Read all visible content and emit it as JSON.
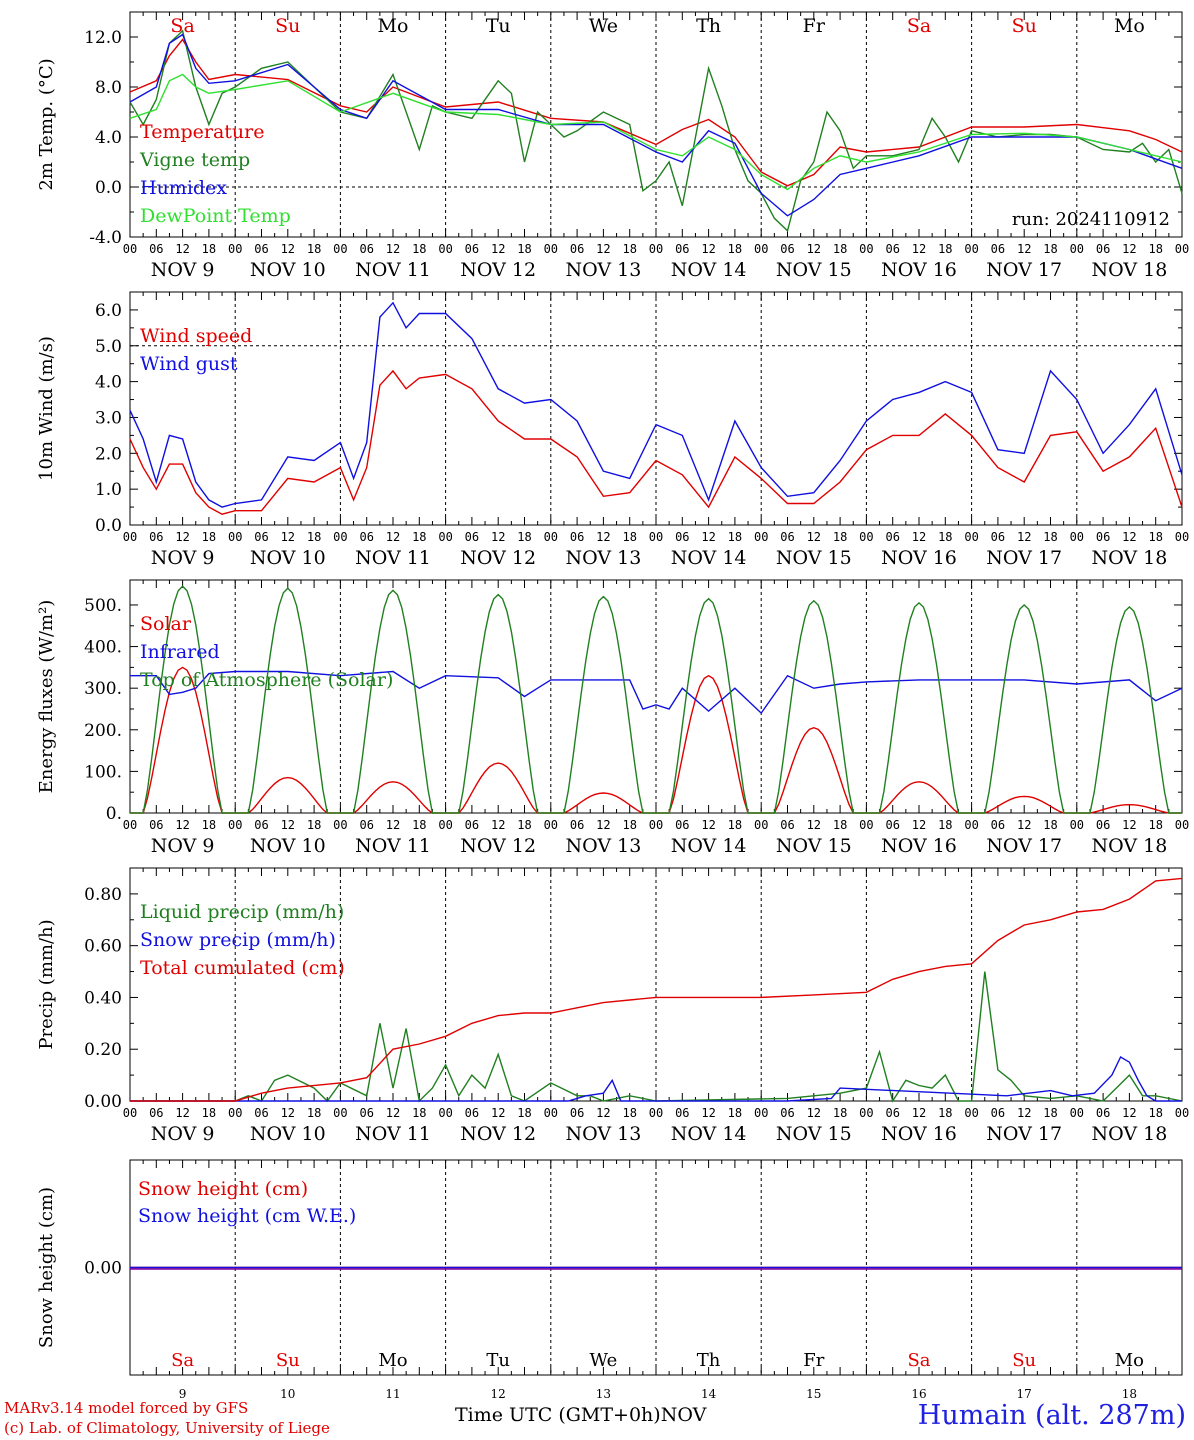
{
  "meta": {
    "run_label": "run: 2024110912",
    "station": "Humain (alt. 287m)",
    "credit_line1": "MARv3.14 model forced by GFS",
    "credit_line2": "(c) Lab. of Climatology, University of Liege",
    "x_title": "Time UTC (GMT+0h)",
    "x_month": "NOV"
  },
  "days": {
    "abbr": [
      "Sa",
      "Su",
      "Mo",
      "Tu",
      "We",
      "Th",
      "Fr",
      "Sa",
      "Su",
      "Mo"
    ],
    "weekend": [
      true,
      true,
      false,
      false,
      false,
      false,
      false,
      true,
      true,
      false
    ],
    "dates": [
      "NOV  9",
      "NOV 10",
      "NOV 11",
      "NOV 12",
      "NOV 13",
      "NOV 14",
      "NOV 15",
      "NOV 16",
      "NOV 17",
      "NOV 18"
    ],
    "nums": [
      "9",
      "10",
      "11",
      "12",
      "13",
      "14",
      "15",
      "16",
      "17",
      "18"
    ],
    "hour_labels": [
      "00",
      "06",
      "12",
      "18"
    ],
    "last_label": "00"
  },
  "colors": {
    "red": "#e00000",
    "green": "#208020",
    "blue": "#1010e0",
    "lightgreen": "#30e030",
    "purple": "#8000a0",
    "weekend": "#e00000",
    "text": "#000000"
  },
  "chart_data": [
    {
      "type": "line",
      "ylabel": "2m Temp. (°C)",
      "ylim": [
        -4,
        14
      ],
      "ticks": [
        "-4.0",
        "0.0",
        "4.0",
        "8.0",
        "12.0"
      ],
      "tick_values": [
        -4,
        0,
        4,
        8,
        12
      ],
      "dashed_y": [
        0
      ],
      "x_unit": "hours since NOV 9 00 UTC",
      "series": [
        {
          "name": "Temperature",
          "color": "red",
          "x": [
            0,
            6,
            9,
            12,
            15,
            18,
            24,
            36,
            48,
            54,
            60,
            72,
            84,
            96,
            108,
            120,
            126,
            132,
            138,
            144,
            150,
            156,
            162,
            168,
            180,
            192,
            204,
            216,
            228,
            240,
            234
          ],
          "y": [
            7.6,
            8.5,
            10.5,
            11.8,
            10.0,
            8.6,
            9.0,
            8.6,
            6.5,
            6.0,
            8.0,
            6.4,
            6.8,
            5.5,
            5.2,
            3.4,
            4.6,
            5.4,
            4.0,
            1.2,
            0.1,
            1.0,
            3.2,
            2.8,
            3.2,
            4.8,
            4.8,
            5.0,
            4.5,
            2.8,
            3.8
          ]
        },
        {
          "name": "Vigne temp",
          "color": "green",
          "x": [
            0,
            3,
            6,
            9,
            12,
            15,
            18,
            21,
            24,
            30,
            36,
            42,
            48,
            54,
            60,
            66,
            69,
            72,
            78,
            84,
            87,
            90,
            93,
            96,
            99,
            102,
            108,
            114,
            117,
            120,
            123,
            126,
            129,
            132,
            135,
            138,
            141,
            144,
            147,
            150,
            153,
            156,
            159,
            162,
            165,
            168,
            174,
            180,
            183,
            186,
            189,
            192,
            198,
            204,
            210,
            216,
            222,
            228,
            231,
            234,
            237,
            240
          ],
          "y": [
            6.8,
            5.0,
            7.0,
            11.5,
            12.5,
            8.0,
            5.0,
            7.5,
            8.0,
            9.5,
            10.0,
            8.0,
            6.0,
            5.5,
            9.0,
            3.0,
            6.5,
            6.0,
            5.5,
            8.5,
            7.5,
            2.0,
            6.0,
            5.0,
            4.0,
            4.5,
            6.0,
            5.0,
            -0.3,
            0.5,
            2.0,
            -1.5,
            4.0,
            9.5,
            6.5,
            3.0,
            0.5,
            -0.5,
            -2.5,
            -3.5,
            0.5,
            2.0,
            6.0,
            4.5,
            1.5,
            2.5,
            2.5,
            3.0,
            5.5,
            4.0,
            2.0,
            4.5,
            4.0,
            4.2,
            4.2,
            4.0,
            3.0,
            2.8,
            3.5,
            2.0,
            3.0,
            -0.5
          ]
        },
        {
          "name": "Humidex",
          "color": "blue",
          "x": [
            0,
            6,
            9,
            12,
            15,
            18,
            24,
            36,
            42,
            48,
            54,
            60,
            72,
            84,
            96,
            108,
            120,
            126,
            132,
            138,
            144,
            150,
            156,
            162,
            168,
            180,
            192,
            204,
            216,
            228,
            240
          ],
          "y": [
            6.8,
            8.0,
            11.5,
            12.2,
            9.5,
            8.3,
            8.5,
            9.8,
            8.0,
            6.2,
            5.5,
            8.5,
            6.2,
            6.2,
            5.0,
            5.0,
            2.8,
            2.0,
            4.5,
            3.5,
            -0.5,
            -2.3,
            -1.0,
            1.0,
            1.5,
            2.5,
            4.0,
            4.0,
            4.0,
            3.0,
            1.5
          ]
        },
        {
          "name": "DewPoint Temp",
          "color": "lightgreen",
          "x": [
            0,
            6,
            9,
            12,
            15,
            18,
            24,
            36,
            48,
            60,
            72,
            84,
            96,
            108,
            120,
            126,
            132,
            138,
            144,
            150,
            156,
            162,
            168,
            180,
            192,
            204,
            216,
            228,
            240
          ],
          "y": [
            5.5,
            6.2,
            8.5,
            9.0,
            8.0,
            7.5,
            7.8,
            8.5,
            6.0,
            7.5,
            6.0,
            5.8,
            5.0,
            5.2,
            3.0,
            2.5,
            4.0,
            3.0,
            1.0,
            -0.2,
            1.5,
            2.5,
            2.0,
            2.8,
            4.2,
            4.3,
            4.0,
            3.0,
            2.0
          ]
        }
      ]
    },
    {
      "type": "line",
      "ylabel": "10m Wind (m/s)",
      "ylim": [
        0,
        6.5
      ],
      "ticks": [
        "0.0",
        "1.0",
        "2.0",
        "3.0",
        "4.0",
        "5.0",
        "6.0"
      ],
      "tick_values": [
        0,
        1,
        2,
        3,
        4,
        5,
        6
      ],
      "dashed_y": [
        5
      ],
      "x_unit": "hours since NOV 9 00 UTC",
      "series": [
        {
          "name": "Wind speed",
          "color": "red",
          "x": [
            0,
            3,
            6,
            9,
            12,
            15,
            18,
            21,
            24,
            30,
            36,
            42,
            48,
            51,
            54,
            57,
            60,
            63,
            66,
            72,
            78,
            84,
            90,
            96,
            102,
            108,
            114,
            120,
            126,
            132,
            138,
            144,
            150,
            156,
            162,
            168,
            174,
            180,
            186,
            192,
            198,
            204,
            210,
            216,
            222,
            228,
            234,
            240
          ],
          "y": [
            2.4,
            1.6,
            1.0,
            1.7,
            1.7,
            0.9,
            0.5,
            0.3,
            0.4,
            0.4,
            1.3,
            1.2,
            1.6,
            0.7,
            1.6,
            3.9,
            4.3,
            3.8,
            4.1,
            4.2,
            3.8,
            2.9,
            2.4,
            2.4,
            1.9,
            0.8,
            0.9,
            1.8,
            1.4,
            0.5,
            1.9,
            1.3,
            0.6,
            0.6,
            1.2,
            2.1,
            2.5,
            2.5,
            3.1,
            2.5,
            1.6,
            1.2,
            2.5,
            2.6,
            1.5,
            1.9,
            2.7,
            0.5
          ]
        },
        {
          "name": "Wind gust",
          "color": "blue",
          "x": [
            0,
            3,
            6,
            9,
            12,
            15,
            18,
            21,
            24,
            30,
            36,
            42,
            48,
            51,
            54,
            57,
            60,
            63,
            66,
            72,
            78,
            84,
            90,
            96,
            102,
            108,
            114,
            120,
            126,
            132,
            138,
            144,
            150,
            156,
            162,
            168,
            174,
            180,
            186,
            192,
            198,
            204,
            210,
            216,
            222,
            228,
            234,
            240
          ],
          "y": [
            3.2,
            2.4,
            1.2,
            2.5,
            2.4,
            1.2,
            0.7,
            0.5,
            0.6,
            0.7,
            1.9,
            1.8,
            2.3,
            1.3,
            2.3,
            5.8,
            6.2,
            5.5,
            5.9,
            5.9,
            5.2,
            3.8,
            3.4,
            3.5,
            2.9,
            1.5,
            1.3,
            2.8,
            2.5,
            0.7,
            2.9,
            1.6,
            0.8,
            0.9,
            1.8,
            2.9,
            3.5,
            3.7,
            4.0,
            3.7,
            2.1,
            2.0,
            4.3,
            3.5,
            2.0,
            2.8,
            3.8,
            1.4
          ]
        }
      ]
    },
    {
      "type": "line",
      "ylabel": "Energy fluxes (W/m²)",
      "ylim": [
        0,
        560
      ],
      "ticks": [
        "0.",
        "100.",
        "200.",
        "300.",
        "400.",
        "500."
      ],
      "tick_values": [
        0,
        100,
        200,
        300,
        400,
        500
      ],
      "x_unit": "hours since NOV 9 00 UTC",
      "series": [
        {
          "name": "Solar",
          "color": "red",
          "bells": [
            [
              12,
              350
            ],
            [
              36,
              85
            ],
            [
              60,
              75
            ],
            [
              84,
              120
            ],
            [
              108,
              48
            ],
            [
              132,
              330
            ],
            [
              156,
              205
            ],
            [
              180,
              75
            ],
            [
              204,
              40
            ],
            [
              228,
              20
            ]
          ]
        },
        {
          "name": "Infrared",
          "color": "blue",
          "x": [
            0,
            6,
            9,
            12,
            15,
            18,
            24,
            36,
            48,
            60,
            66,
            72,
            84,
            90,
            93,
            96,
            108,
            114,
            117,
            120,
            123,
            126,
            132,
            138,
            144,
            150,
            156,
            162,
            168,
            180,
            192,
            198,
            204,
            216,
            228,
            234,
            240
          ],
          "y": [
            330,
            330,
            285,
            290,
            300,
            335,
            340,
            340,
            330,
            340,
            300,
            330,
            325,
            280,
            300,
            320,
            320,
            320,
            250,
            260,
            250,
            300,
            245,
            300,
            240,
            330,
            300,
            310,
            315,
            320,
            320,
            320,
            320,
            310,
            320,
            270,
            300
          ]
        },
        {
          "name": "Top of Atmosphere (Solar)",
          "color": "green",
          "bells": [
            [
              12,
              545
            ],
            [
              36,
              540
            ],
            [
              60,
              535
            ],
            [
              84,
              525
            ],
            [
              108,
              520
            ],
            [
              132,
              515
            ],
            [
              156,
              510
            ],
            [
              180,
              505
            ],
            [
              204,
              500
            ],
            [
              228,
              495
            ]
          ]
        }
      ]
    },
    {
      "type": "line",
      "ylabel": "Precip (mm/h)",
      "ylim": [
        0,
        0.9
      ],
      "ticks": [
        "0.00",
        "0.20",
        "0.40",
        "0.60",
        "0.80"
      ],
      "tick_values": [
        0,
        0.2,
        0.4,
        0.6,
        0.8
      ],
      "x_unit": "hours since NOV 9 00 UTC",
      "series": [
        {
          "name": "Liquid precip (mm/h)",
          "color": "green",
          "x": [
            0,
            24,
            27,
            30,
            33,
            36,
            42,
            45,
            48,
            54,
            57,
            60,
            63,
            66,
            69,
            72,
            75,
            78,
            81,
            84,
            87,
            90,
            96,
            102,
            105,
            108,
            114,
            120,
            150,
            162,
            168,
            171,
            174,
            177,
            180,
            183,
            186,
            189,
            192,
            195,
            198,
            201,
            204,
            210,
            216,
            222,
            225,
            228,
            231,
            234,
            240
          ],
          "y": [
            0,
            0,
            0.02,
            0,
            0.08,
            0.1,
            0.05,
            0,
            0.07,
            0.02,
            0.3,
            0.05,
            0.28,
            0,
            0.05,
            0.14,
            0.02,
            0.1,
            0.05,
            0.18,
            0.02,
            0,
            0.07,
            0.02,
            0.02,
            0,
            0.02,
            0,
            0.01,
            0.03,
            0.05,
            0.19,
            0,
            0.08,
            0.06,
            0.05,
            0.1,
            0,
            0,
            0.5,
            0.12,
            0.08,
            0.02,
            0.01,
            0.02,
            0,
            0.05,
            0.1,
            0.02,
            0.02,
            0
          ]
        },
        {
          "name": "Snow precip (mm/h)",
          "color": "blue",
          "x": [
            0,
            100,
            104,
            108,
            110,
            112,
            150,
            160,
            162,
            200,
            210,
            215,
            220,
            224,
            226,
            228,
            230,
            232,
            234,
            240
          ],
          "y": [
            0,
            0,
            0.02,
            0.03,
            0.08,
            0,
            0,
            0.01,
            0.05,
            0.02,
            0.04,
            0.02,
            0.03,
            0.1,
            0.17,
            0.15,
            0.08,
            0.02,
            0,
            0
          ]
        },
        {
          "name": "Total cumulated (cm)",
          "color": "red",
          "x": [
            0,
            24,
            30,
            36,
            48,
            54,
            60,
            66,
            72,
            78,
            84,
            90,
            96,
            102,
            108,
            120,
            132,
            144,
            156,
            168,
            174,
            180,
            186,
            192,
            198,
            204,
            210,
            216,
            222,
            228,
            234,
            240
          ],
          "y": [
            0,
            0,
            0.03,
            0.05,
            0.07,
            0.09,
            0.2,
            0.22,
            0.25,
            0.3,
            0.33,
            0.34,
            0.34,
            0.36,
            0.38,
            0.4,
            0.4,
            0.4,
            0.41,
            0.42,
            0.47,
            0.5,
            0.52,
            0.53,
            0.62,
            0.68,
            0.7,
            0.73,
            0.74,
            0.78,
            0.85,
            0.86
          ]
        }
      ]
    },
    {
      "type": "line",
      "ylabel": "Snow height (cm)",
      "ylim": [
        -1,
        1
      ],
      "ticks": [
        "0.00"
      ],
      "tick_values": [
        0
      ],
      "x_unit": "hours since NOV 9 00 UTC",
      "series": [
        {
          "name": "Snow height (cm)",
          "color": "red",
          "x": [
            0,
            240
          ],
          "y": [
            0,
            0
          ]
        },
        {
          "name": "Snow height (cm W.E.)",
          "color": "blue",
          "x": [
            0,
            240
          ],
          "y": [
            0,
            0
          ]
        }
      ]
    }
  ]
}
